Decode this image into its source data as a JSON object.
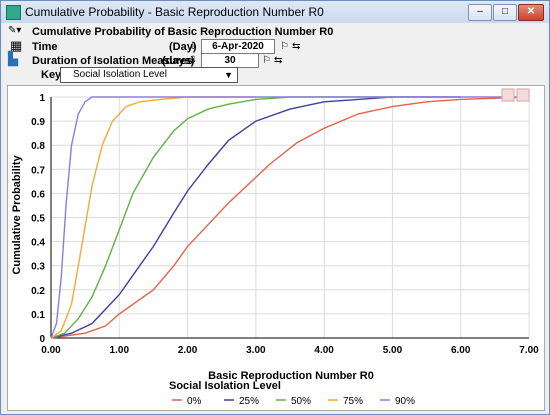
{
  "window": {
    "title": "Cumulative Probability - Basic Reproduction Number R0",
    "buttons": {
      "minimize": "–",
      "maximize": "□",
      "close": "✕"
    }
  },
  "header": {
    "subtitle": "Cumulative Probability of Basic Reproduction Number R0",
    "time_label": "Time",
    "time_unit": "(Day)",
    "time_value": "6-Apr-2020",
    "duration_label": "Duration of Isolation Measures",
    "duration_unit": "(days)",
    "duration_value": "30",
    "key_label": "Key:",
    "key_value": "Social Isolation Level"
  },
  "chart_data": {
    "type": "line",
    "xlabel": "Basic Reproduction Number R0",
    "ylabel": "Cumulative Probability",
    "xlim": [
      0,
      7
    ],
    "ylim": [
      0,
      1
    ],
    "x_ticks": [
      "0.00",
      "1.00",
      "2.00",
      "3.00",
      "4.00",
      "5.00",
      "6.00",
      "7.00"
    ],
    "y_ticks": [
      "0",
      "0.1",
      "0.2",
      "0.3",
      "0.4",
      "0.5",
      "0.6",
      "0.7",
      "0.8",
      "0.9",
      "1"
    ],
    "legend_title": "Social Isolation Level",
    "legend_position": "bottom",
    "grid": true,
    "series": [
      {
        "name": "0%",
        "color": "#e4624e",
        "x": [
          0,
          0.5,
          0.8,
          1,
          1.2,
          1.5,
          1.8,
          2,
          2.3,
          2.6,
          2.9,
          3.2,
          3.6,
          4,
          4.5,
          5,
          5.5,
          6,
          7
        ],
        "y": [
          0,
          0.02,
          0.05,
          0.1,
          0.14,
          0.2,
          0.3,
          0.38,
          0.47,
          0.56,
          0.64,
          0.72,
          0.81,
          0.87,
          0.93,
          0.96,
          0.98,
          0.99,
          1
        ]
      },
      {
        "name": "25%",
        "color": "#3f3f9f",
        "x": [
          0,
          0.3,
          0.6,
          0.8,
          1,
          1.2,
          1.5,
          1.8,
          2,
          2.3,
          2.6,
          3,
          3.5,
          4,
          4.5,
          5,
          6
        ],
        "y": [
          0,
          0.02,
          0.06,
          0.12,
          0.18,
          0.26,
          0.38,
          0.52,
          0.61,
          0.72,
          0.82,
          0.9,
          0.95,
          0.98,
          0.99,
          1,
          1
        ]
      },
      {
        "name": "50%",
        "color": "#5db346",
        "x": [
          0,
          0.2,
          0.4,
          0.6,
          0.8,
          1,
          1.2,
          1.5,
          1.8,
          2,
          2.3,
          2.6,
          3,
          3.5,
          4,
          5
        ],
        "y": [
          0,
          0.02,
          0.08,
          0.17,
          0.3,
          0.45,
          0.6,
          0.75,
          0.86,
          0.91,
          0.95,
          0.97,
          0.99,
          1,
          1,
          1
        ]
      },
      {
        "name": "75%",
        "color": "#f7a93b",
        "x": [
          0,
          0.15,
          0.3,
          0.45,
          0.6,
          0.75,
          0.9,
          1.1,
          1.3,
          1.6,
          2,
          2.5,
          3
        ],
        "y": [
          0,
          0.03,
          0.14,
          0.38,
          0.63,
          0.8,
          0.9,
          0.96,
          0.98,
          0.99,
          1,
          1,
          1
        ]
      },
      {
        "name": "90%",
        "color": "#8e7ae6",
        "x": [
          0,
          0.08,
          0.15,
          0.22,
          0.3,
          0.4,
          0.5,
          0.6,
          0.8,
          1,
          7
        ],
        "y": [
          0,
          0.06,
          0.25,
          0.55,
          0.8,
          0.93,
          0.98,
          1,
          1,
          1,
          1
        ]
      }
    ]
  }
}
